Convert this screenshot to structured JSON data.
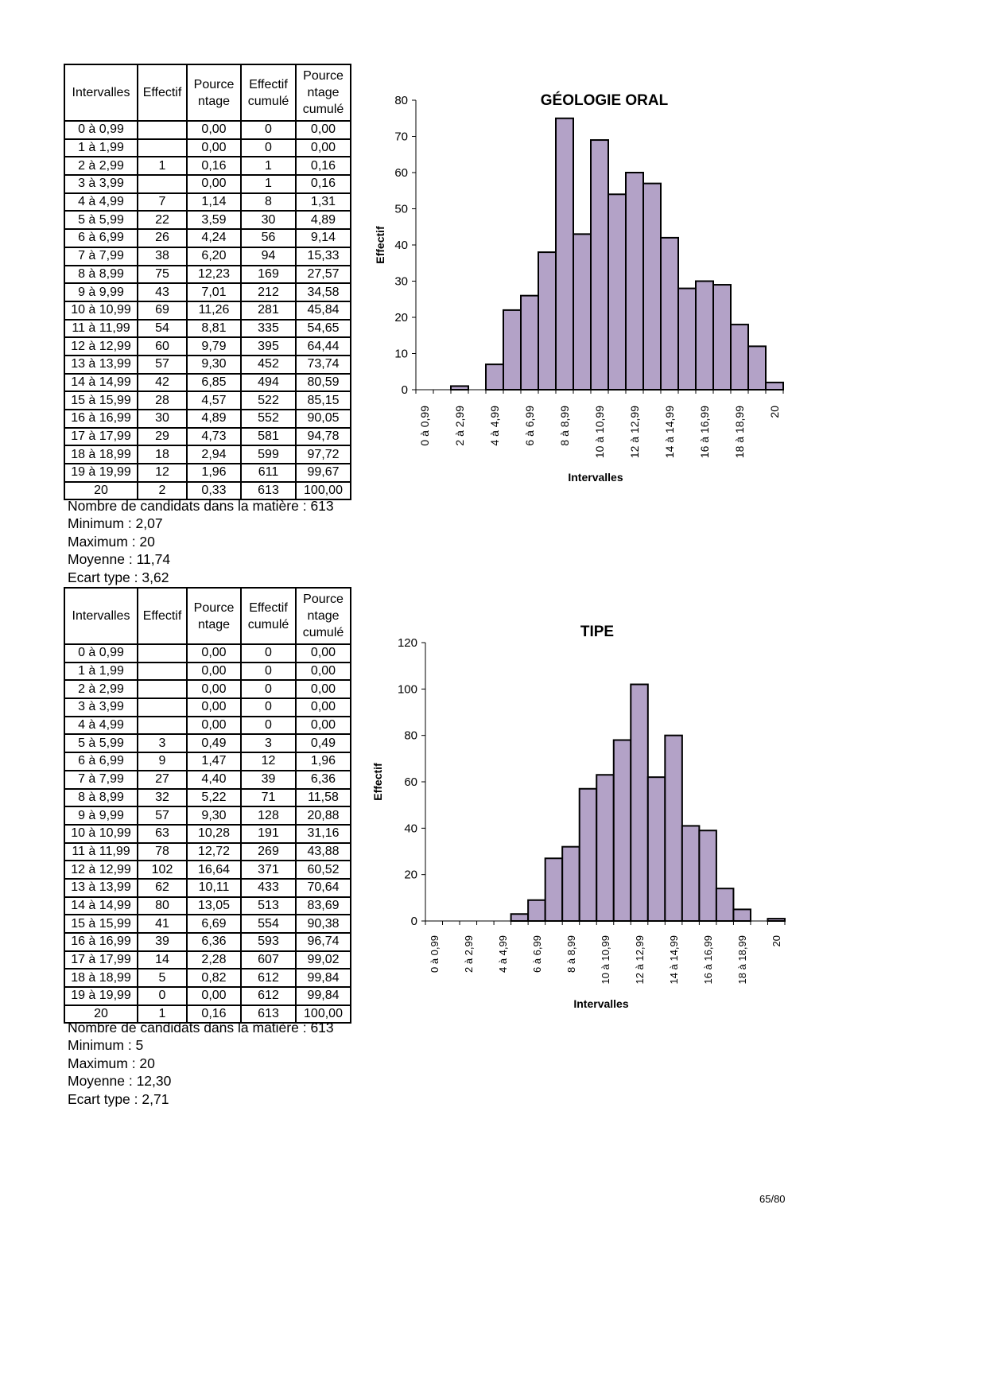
{
  "columns": [
    "Intervalles",
    "Effectif",
    "Pource ntage",
    "Effectif cumulé",
    "Pource ntage cumulé"
  ],
  "sections": [
    {
      "rows": [
        [
          "0 à 0,99",
          "",
          "0,00",
          "0",
          "0,00"
        ],
        [
          "1 à 1,99",
          "",
          "0,00",
          "0",
          "0,00"
        ],
        [
          "2 à 2,99",
          "1",
          "0,16",
          "1",
          "0,16"
        ],
        [
          "3 à 3,99",
          "",
          "0,00",
          "1",
          "0,16"
        ],
        [
          "4 à 4,99",
          "7",
          "1,14",
          "8",
          "1,31"
        ],
        [
          "5 à 5,99",
          "22",
          "3,59",
          "30",
          "4,89"
        ],
        [
          "6 à 6,99",
          "26",
          "4,24",
          "56",
          "9,14"
        ],
        [
          "7 à 7,99",
          "38",
          "6,20",
          "94",
          "15,33"
        ],
        [
          "8 à 8,99",
          "75",
          "12,23",
          "169",
          "27,57"
        ],
        [
          "9 à 9,99",
          "43",
          "7,01",
          "212",
          "34,58"
        ],
        [
          "10 à 10,99",
          "69",
          "11,26",
          "281",
          "45,84"
        ],
        [
          "11 à 11,99",
          "54",
          "8,81",
          "335",
          "54,65"
        ],
        [
          "12 à 12,99",
          "60",
          "9,79",
          "395",
          "64,44"
        ],
        [
          "13 à 13,99",
          "57",
          "9,30",
          "452",
          "73,74"
        ],
        [
          "14 à 14,99",
          "42",
          "6,85",
          "494",
          "80,59"
        ],
        [
          "15 à 15,99",
          "28",
          "4,57",
          "522",
          "85,15"
        ],
        [
          "16 à 16,99",
          "30",
          "4,89",
          "552",
          "90,05"
        ],
        [
          "17 à 17,99",
          "29",
          "4,73",
          "581",
          "94,78"
        ],
        [
          "18 à 18,99",
          "18",
          "2,94",
          "599",
          "97,72"
        ],
        [
          "19 à 19,99",
          "12",
          "1,96",
          "611",
          "99,67"
        ],
        [
          "20",
          "2",
          "0,33",
          "613",
          "100,00"
        ]
      ],
      "stats": [
        "Nombre de candidats dans la matière : 613",
        "Minimum : 2,07",
        "Maximum : 20",
        "Moyenne : 11,74",
        "Ecart type : 3,62"
      ]
    },
    {
      "rows": [
        [
          "0 à 0,99",
          "",
          "0,00",
          "0",
          "0,00"
        ],
        [
          "1 à 1,99",
          "",
          "0,00",
          "0",
          "0,00"
        ],
        [
          "2 à 2,99",
          "",
          "0,00",
          "0",
          "0,00"
        ],
        [
          "3 à 3,99",
          "",
          "0,00",
          "0",
          "0,00"
        ],
        [
          "4 à 4,99",
          "",
          "0,00",
          "0",
          "0,00"
        ],
        [
          "5 à 5,99",
          "3",
          "0,49",
          "3",
          "0,49"
        ],
        [
          "6 à 6,99",
          "9",
          "1,47",
          "12",
          "1,96"
        ],
        [
          "7 à 7,99",
          "27",
          "4,40",
          "39",
          "6,36"
        ],
        [
          "8 à 8,99",
          "32",
          "5,22",
          "71",
          "11,58"
        ],
        [
          "9 à 9,99",
          "57",
          "9,30",
          "128",
          "20,88"
        ],
        [
          "10 à 10,99",
          "63",
          "10,28",
          "191",
          "31,16"
        ],
        [
          "11 à 11,99",
          "78",
          "12,72",
          "269",
          "43,88"
        ],
        [
          "12 à 12,99",
          "102",
          "16,64",
          "371",
          "60,52"
        ],
        [
          "13 à 13,99",
          "62",
          "10,11",
          "433",
          "70,64"
        ],
        [
          "14 à 14,99",
          "80",
          "13,05",
          "513",
          "83,69"
        ],
        [
          "15 à 15,99",
          "41",
          "6,69",
          "554",
          "90,38"
        ],
        [
          "16 à 16,99",
          "39",
          "6,36",
          "593",
          "96,74"
        ],
        [
          "17 à 17,99",
          "14",
          "2,28",
          "607",
          "99,02"
        ],
        [
          "18 à 18,99",
          "5",
          "0,82",
          "612",
          "99,84"
        ],
        [
          "19 à 19,99",
          "0",
          "0,00",
          "612",
          "99,84"
        ],
        [
          "20",
          "1",
          "0,16",
          "613",
          "100,00"
        ]
      ],
      "stats": [
        "Nombre de candidats dans la matière : 613",
        "Minimum : 5",
        "Maximum : 20",
        "Moyenne : 12,30",
        "Ecart type : 2,71"
      ]
    }
  ],
  "chart_data": [
    {
      "type": "bar",
      "title": "GÉOLOGIE ORAL",
      "xlabel": "Intervalles",
      "ylabel": "Effectif",
      "ylim": [
        0,
        80
      ],
      "yticks": [
        0,
        10,
        20,
        30,
        40,
        50,
        60,
        70,
        80
      ],
      "categories": [
        "0 à 0,99",
        "1 à 1,99",
        "2 à 2,99",
        "3 à 3,99",
        "4 à 4,99",
        "5 à 5,99",
        "6 à 6,99",
        "7 à 7,99",
        "8 à 8,99",
        "9 à 9,99",
        "10 à 10,99",
        "11 à 11,99",
        "12 à 12,99",
        "13 à 13,99",
        "14 à 14,99",
        "15 à 15,99",
        "16 à 16,99",
        "17 à 17,99",
        "18 à 18,99",
        "19 à 19,99",
        "20"
      ],
      "values": [
        0,
        0,
        1,
        0,
        7,
        22,
        26,
        38,
        75,
        43,
        69,
        54,
        60,
        57,
        42,
        28,
        30,
        29,
        18,
        12,
        2
      ],
      "color": "#b3a2c7"
    },
    {
      "type": "bar",
      "title": "TIPE",
      "xlabel": "Intervalles",
      "ylabel": "Effectif",
      "ylim": [
        0,
        120
      ],
      "yticks": [
        0,
        20,
        40,
        60,
        80,
        100,
        120
      ],
      "categories": [
        "0 à 0,99",
        "1 à 1,99",
        "2 à 2,99",
        "3 à 3,99",
        "4 à 4,99",
        "5 à 5,99",
        "6 à 6,99",
        "7 à 7,99",
        "8 à 8,99",
        "9 à 9,99",
        "10 à 10,99",
        "11 à 11,99",
        "12 à 12,99",
        "13 à 13,99",
        "14 à 14,99",
        "15 à 15,99",
        "16 à 16,99",
        "17 à 17,99",
        "18 à 18,99",
        "19 à 19,99",
        "20"
      ],
      "values": [
        0,
        0,
        0,
        0,
        0,
        3,
        9,
        27,
        32,
        57,
        63,
        78,
        102,
        62,
        80,
        41,
        39,
        14,
        5,
        0,
        1
      ],
      "color": "#b3a2c7"
    }
  ],
  "page_number": "65/80"
}
